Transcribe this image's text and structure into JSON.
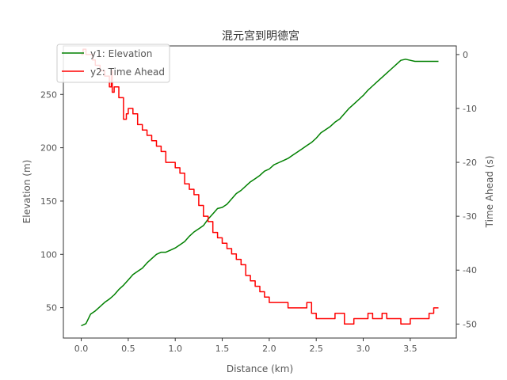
{
  "chart_data": {
    "type": "line",
    "title": "混元宮到明德宮",
    "xlabel": "Distance (km)",
    "ylabel_left": "Elevation (m)",
    "ylabel_right": "Time Ahead (s)",
    "xlim": [
      -0.19,
      3.99
    ],
    "ylim_left": [
      21.5,
      295.5
    ],
    "ylim_right": [
      -52.6,
      1.6
    ],
    "x_ticks": [
      0.0,
      0.5,
      1.0,
      1.5,
      2.0,
      2.5,
      3.0,
      3.5
    ],
    "x_tick_labels": [
      "0.0",
      "0.5",
      "1.0",
      "1.5",
      "2.0",
      "2.5",
      "3.0",
      "3.5"
    ],
    "y_left_ticks": [
      50,
      100,
      150,
      200,
      250
    ],
    "y_left_tick_labels": [
      "50",
      "100",
      "150",
      "200",
      "250"
    ],
    "y_right_ticks": [
      0,
      -10,
      -20,
      -30,
      -40,
      -50
    ],
    "y_right_tick_labels": [
      "0",
      "-10",
      "-20",
      "-30",
      "-40",
      "-50"
    ],
    "legend_position": "top-left",
    "grid": false,
    "series": [
      {
        "name": "y1: Elevation",
        "axis": "left",
        "color": "#008000",
        "x": [
          0.0,
          0.05,
          0.1,
          0.15,
          0.2,
          0.25,
          0.3,
          0.35,
          0.4,
          0.45,
          0.5,
          0.55,
          0.6,
          0.65,
          0.7,
          0.75,
          0.8,
          0.85,
          0.9,
          0.95,
          1.0,
          1.05,
          1.1,
          1.15,
          1.2,
          1.25,
          1.3,
          1.35,
          1.4,
          1.45,
          1.5,
          1.55,
          1.6,
          1.65,
          1.7,
          1.75,
          1.8,
          1.85,
          1.9,
          1.95,
          2.0,
          2.05,
          2.1,
          2.15,
          2.2,
          2.25,
          2.3,
          2.35,
          2.4,
          2.45,
          2.5,
          2.55,
          2.6,
          2.65,
          2.7,
          2.75,
          2.8,
          2.85,
          2.9,
          2.95,
          3.0,
          3.05,
          3.1,
          3.15,
          3.2,
          3.25,
          3.3,
          3.35,
          3.4,
          3.45,
          3.5,
          3.55,
          3.6,
          3.65,
          3.7,
          3.75,
          3.8
        ],
        "values": [
          33,
          35,
          44,
          47,
          51,
          55,
          58,
          62,
          67,
          71,
          76,
          81,
          84,
          87,
          92,
          96,
          100,
          102,
          102,
          104,
          106,
          109,
          112,
          117,
          121,
          124,
          127,
          133,
          138,
          143,
          144,
          147,
          152,
          157,
          160,
          164,
          168,
          171,
          174,
          178,
          180,
          184,
          186,
          188,
          190,
          193,
          196,
          199,
          202,
          205,
          209,
          214,
          217,
          220,
          224,
          227,
          232,
          237,
          241,
          245,
          249,
          254,
          258,
          262,
          266,
          270,
          274,
          278,
          282,
          283,
          282,
          281,
          281,
          281,
          281,
          281,
          281
        ]
      },
      {
        "name": "y2: Time Ahead",
        "axis": "right",
        "color": "#ff0000",
        "x": [
          0.0,
          0.02,
          0.05,
          0.08,
          0.12,
          0.15,
          0.2,
          0.25,
          0.3,
          0.32,
          0.33,
          0.35,
          0.4,
          0.45,
          0.48,
          0.5,
          0.55,
          0.6,
          0.65,
          0.7,
          0.75,
          0.8,
          0.85,
          0.9,
          0.95,
          1.0,
          1.05,
          1.1,
          1.15,
          1.2,
          1.25,
          1.3,
          1.35,
          1.4,
          1.45,
          1.5,
          1.55,
          1.6,
          1.65,
          1.7,
          1.75,
          1.8,
          1.85,
          1.9,
          1.95,
          2.0,
          2.05,
          2.1,
          2.15,
          2.2,
          2.25,
          2.3,
          2.35,
          2.4,
          2.45,
          2.5,
          2.55,
          2.6,
          2.65,
          2.7,
          2.75,
          2.8,
          2.85,
          2.9,
          2.95,
          3.0,
          3.05,
          3.1,
          3.15,
          3.2,
          3.25,
          3.3,
          3.35,
          3.4,
          3.45,
          3.5,
          3.55,
          3.6,
          3.65,
          3.7,
          3.75,
          3.8
        ],
        "values": [
          0,
          1,
          0,
          0,
          -1,
          -2,
          -3,
          -4,
          -6,
          -3,
          -7,
          -6,
          -8,
          -12,
          -11,
          -10,
          -11,
          -13,
          -14,
          -15,
          -16,
          -17,
          -18,
          -20,
          -20,
          -21,
          -22,
          -24,
          -25,
          -26,
          -28,
          -30,
          -31,
          -33,
          -34,
          -35,
          -36,
          -37,
          -38,
          -39,
          -41,
          -42,
          -43,
          -44,
          -45,
          -46,
          -46,
          -46,
          -46,
          -47,
          -47,
          -47,
          -47,
          -46,
          -48,
          -49,
          -49,
          -49,
          -49,
          -48,
          -48,
          -50,
          -50,
          -49,
          -49,
          -49,
          -48,
          -49,
          -49,
          -48,
          -49,
          -49,
          -49,
          -50,
          -50,
          -49,
          -49,
          -49,
          -49,
          -48,
          -47,
          -47
        ]
      }
    ]
  }
}
